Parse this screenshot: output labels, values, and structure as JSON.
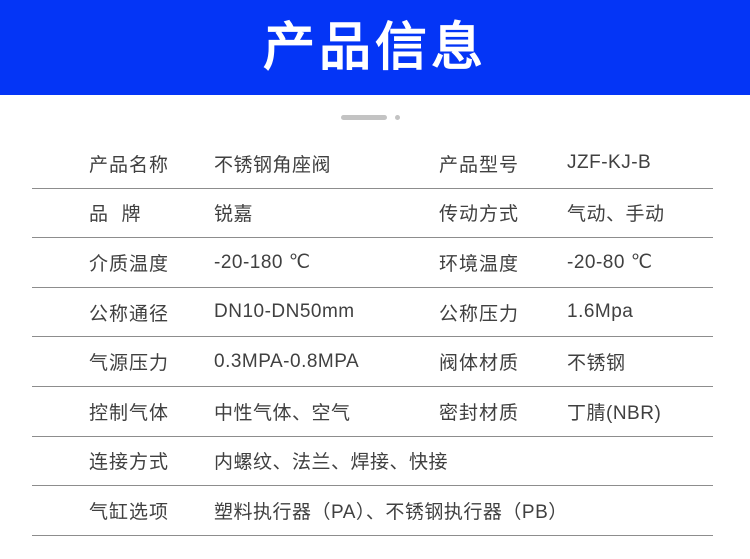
{
  "banner": {
    "title": "产品信息",
    "background_color": "#0435f6",
    "text_color": "#ffffff"
  },
  "ornament": {
    "color": "#c3c3c3"
  },
  "spec_table": {
    "text_color": "#404040",
    "divider_color": "#8d8d8d",
    "rows": [
      {
        "cells": [
          {
            "label": "产品名称",
            "value": "不锈钢角座阀"
          },
          {
            "label": "产品型号",
            "value": "JZF-KJ-B"
          }
        ]
      },
      {
        "cells": [
          {
            "label": "品  牌",
            "value": "锐嘉"
          },
          {
            "label": "传动方式",
            "value": "气动、手动"
          }
        ]
      },
      {
        "cells": [
          {
            "label": "介质温度",
            "value": "-20-180 ℃"
          },
          {
            "label": "环境温度",
            "value": "-20-80 ℃"
          }
        ]
      },
      {
        "cells": [
          {
            "label": "公称通径",
            "value": "DN10-DN50mm"
          },
          {
            "label": "公称压力",
            "value": "1.6Mpa"
          }
        ]
      },
      {
        "cells": [
          {
            "label": "气源压力",
            "value": "0.3MPA-0.8MPA"
          },
          {
            "label": "阀体材质",
            "value": "不锈钢"
          }
        ]
      },
      {
        "cells": [
          {
            "label": "控制气体",
            "value": "中性气体、空气"
          },
          {
            "label": "密封材质",
            "value": "丁腈(NBR)"
          }
        ]
      },
      {
        "cells": [
          {
            "label": "连接方式",
            "value": "内螺纹、法兰、焊接、快接"
          }
        ]
      },
      {
        "cells": [
          {
            "label": "气缸选项",
            "value": "塑料执行器（PA）、不锈钢执行器（PB）"
          }
        ]
      }
    ]
  }
}
